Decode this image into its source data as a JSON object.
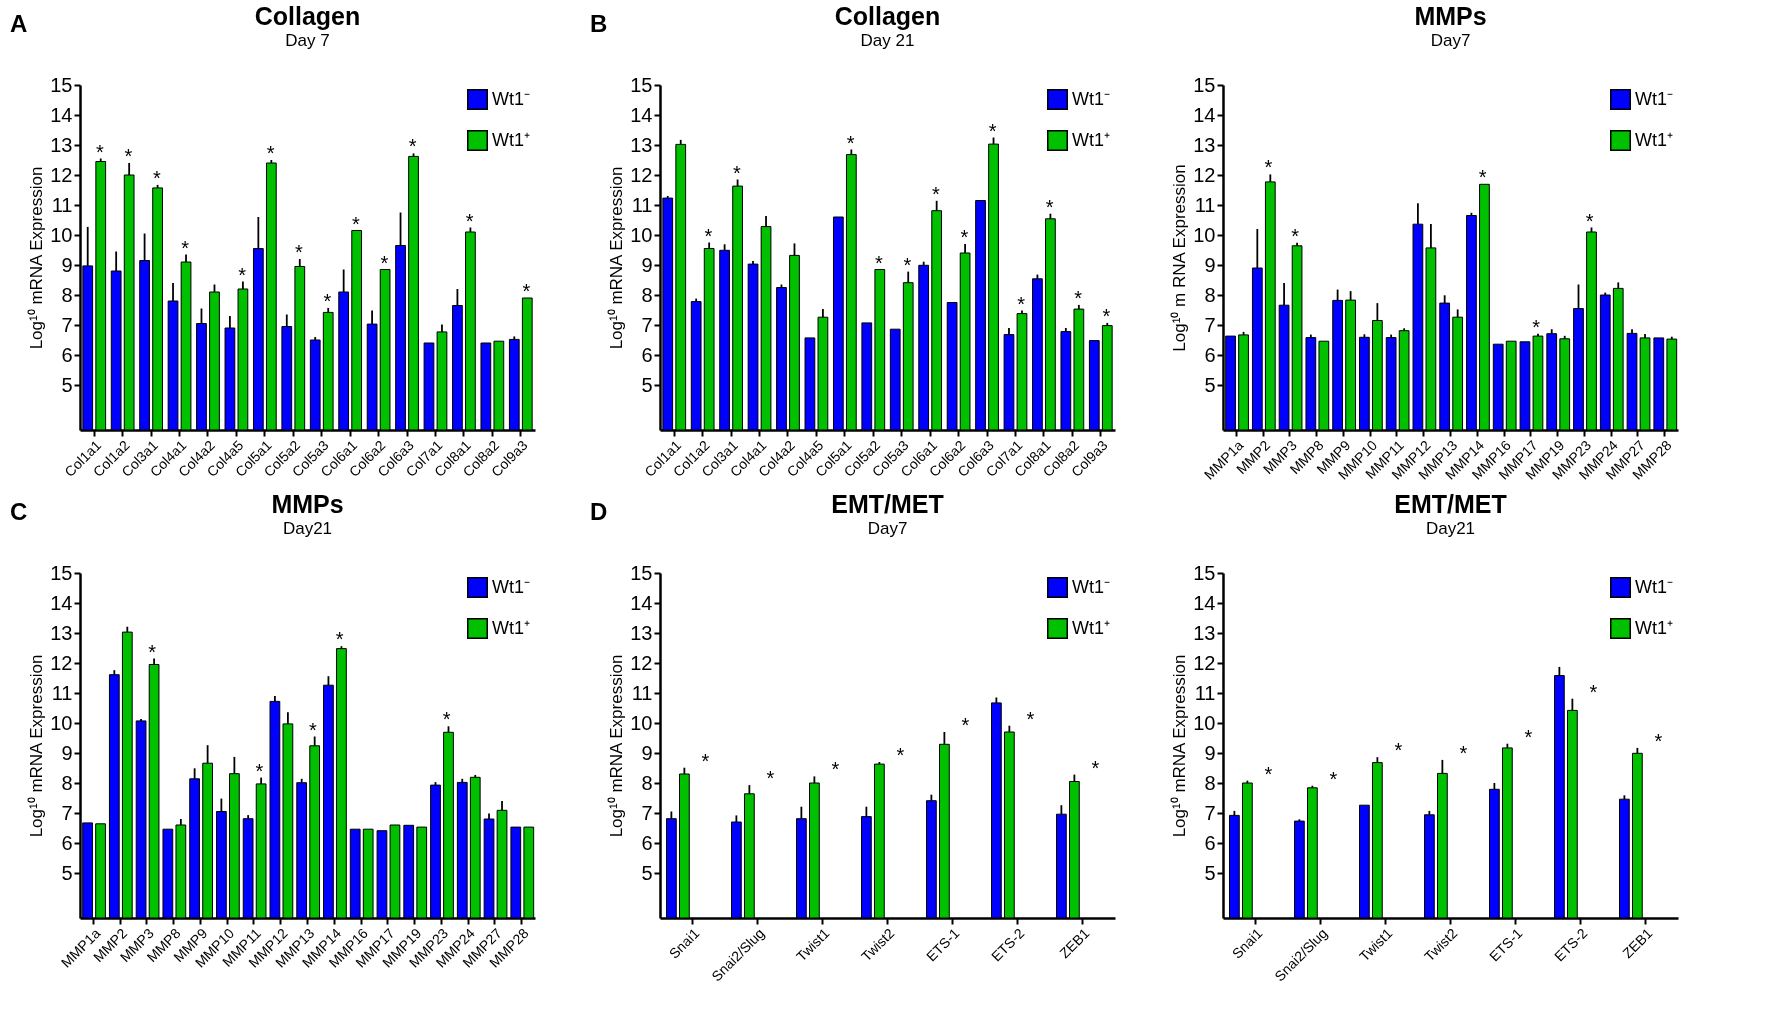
{
  "chart_data": [
    {
      "type": "bar",
      "title": "Collagen",
      "subtitle": "Day 7",
      "ylabel": "Log¹⁰ mRNA Expression",
      "legend": "top right",
      "ylim": [
        3.5,
        15
      ],
      "yticks": [
        5,
        6,
        7,
        8,
        9,
        10,
        11,
        12,
        13,
        14,
        15
      ],
      "categories": [
        "Col1a1",
        "Col1a2",
        "Col3a1",
        "Col4a1",
        "Col4a2",
        "Col4a5",
        "Col5a1",
        "Col5a2",
        "Col5a3",
        "Col6a1",
        "Col6a2",
        "Col6a3",
        "Col7a1",
        "Col8a1",
        "Col8a2",
        "Col9a3"
      ],
      "series": [
        {
          "name": "Wt1⁻",
          "color": "#0000ff",
          "values": [
            8.97,
            8.8,
            9.15,
            7.8,
            7.05,
            6.9,
            9.55,
            6.95,
            6.5,
            8.1,
            7.03,
            9.65,
            6.4,
            7.65,
            6.4,
            6.52
          ],
          "errors": [
            1.3,
            0.65,
            0.9,
            0.6,
            0.5,
            0.4,
            1.05,
            0.4,
            0.1,
            0.75,
            0.45,
            1.1,
            null,
            0.55,
            null,
            0.1
          ]
        },
        {
          "name": "Wt1⁺",
          "color": "#00c000",
          "values": [
            12.45,
            12.0,
            11.57,
            9.1,
            8.1,
            8.2,
            12.4,
            8.95,
            7.42,
            10.15,
            8.85,
            12.62,
            6.77,
            10.1,
            6.46,
            7.9
          ],
          "errors": [
            0.1,
            0.4,
            0.1,
            0.25,
            0.25,
            0.25,
            0.1,
            0.25,
            0.15,
            null,
            null,
            0.1,
            0.25,
            0.15,
            null,
            null
          ]
        }
      ],
      "annotations": [
        "A",
        {
          "text": "*",
          "x": "Col1a1",
          "y": 12.45
        },
        {
          "text": "*",
          "x": "Col1a2",
          "y": 12.0
        },
        {
          "text": "*",
          "x": "Col3a1",
          "y": 11.57
        },
        {
          "text": "*",
          "x": "Col4a1",
          "y": 9.1
        },
        {
          "text": "*",
          "x": "Col4a5",
          "y": 8.2
        },
        {
          "text": "*",
          "x": "Col5a1",
          "y": 12.4
        },
        {
          "text": "*",
          "x": "Col5a2",
          "y": 8.95
        },
        {
          "text": "*",
          "x": "Col5a3",
          "y": 7.42
        },
        {
          "text": "*",
          "x": "Col6a1",
          "y": 10.15
        },
        {
          "text": "*",
          "x": "Col6a2",
          "y": 8.85
        },
        {
          "text": "*",
          "x": "Col6a3",
          "y": 12.62
        },
        {
          "text": "*",
          "x": "Col8a1",
          "y": 10.1
        },
        {
          "text": "*",
          "x": "Col9a3",
          "y": 7.9
        }
      ]
    },
    {
      "type": "bar",
      "title": "Collagen",
      "subtitle": "Day 21",
      "ylabel": "Log¹⁰ mRNA Expression",
      "legend": "top right",
      "ylim": [
        3.5,
        15
      ],
      "yticks": [
        5,
        6,
        7,
        8,
        9,
        10,
        11,
        12,
        13,
        14,
        15
      ],
      "categories": [
        "Col1a1",
        "Col1a2",
        "Col3a1",
        "Col4a1",
        "Col4a2",
        "Col4a5",
        "Col5a1",
        "Col5a2",
        "Col5a3",
        "Col6a1",
        "Col6a2",
        "Col6a3",
        "Col7a1",
        "Col8a1",
        "Col8a2",
        "Col9a3"
      ],
      "series": [
        {
          "name": "Wt1⁻",
          "color": "#0000ff",
          "values": [
            11.23,
            7.78,
            9.49,
            9.03,
            8.25,
            6.57,
            10.6,
            7.07,
            6.86,
            8.99,
            7.75,
            11.15,
            6.68,
            8.54,
            6.78,
            6.48
          ],
          "errors": [
            0.07,
            0.1,
            0.2,
            0.1,
            0.1,
            null,
            null,
            null,
            null,
            0.12,
            null,
            null,
            0.22,
            0.14,
            0.12,
            null
          ]
        },
        {
          "name": "Wt1⁺",
          "color": "#00c000",
          "values": [
            13.02,
            9.55,
            11.63,
            10.28,
            9.32,
            7.26,
            12.68,
            8.85,
            8.41,
            10.81,
            9.4,
            13.03,
            7.38,
            10.54,
            7.53,
            6.98
          ],
          "errors": [
            0.15,
            0.2,
            0.22,
            0.35,
            0.4,
            0.27,
            0.17,
            null,
            0.37,
            0.33,
            0.3,
            0.22,
            0.1,
            0.17,
            0.14,
            0.09
          ]
        }
      ],
      "annotations": [
        "B",
        {
          "text": "*",
          "x": "Col1a2",
          "y": 9.55
        },
        {
          "text": "*",
          "x": "Col3a1",
          "y": 11.63
        },
        {
          "text": "*",
          "x": "Col5a1",
          "y": 12.68
        },
        {
          "text": "*",
          "x": "Col5a2",
          "y": 8.85
        },
        {
          "text": "*",
          "x": "Col5a3",
          "y": 8.41
        },
        {
          "text": "*",
          "x": "Col6a1",
          "y": 10.81
        },
        {
          "text": "*",
          "x": "Col6a2",
          "y": 9.4
        },
        {
          "text": "*",
          "x": "Col6a3",
          "y": 13.03
        },
        {
          "text": "*",
          "x": "Col7a1",
          "y": 7.38
        },
        {
          "text": "*",
          "x": "Col8a1",
          "y": 10.54
        },
        {
          "text": "*",
          "x": "Col8a2",
          "y": 7.53
        },
        {
          "text": "*",
          "x": "Col9a3",
          "y": 6.98
        }
      ]
    },
    {
      "type": "bar",
      "title": "MMPs",
      "subtitle": "Day7",
      "ylabel": "Log¹⁰ m RNA Expression",
      "legend": "top right",
      "ylim": [
        3.5,
        15
      ],
      "yticks": [
        5,
        6,
        7,
        8,
        9,
        10,
        11,
        12,
        13,
        14,
        15
      ],
      "categories": [
        "MMP1a",
        "MMP2",
        "MMP3",
        "MMP8",
        "MMP9",
        "MMP10",
        "MMP11",
        "MMP12",
        "MMP13",
        "MMP14",
        "MMP16",
        "MMP17",
        "MMP19",
        "MMP23",
        "MMP24",
        "MMP27",
        "MMP28"
      ],
      "series": [
        {
          "name": "Wt1⁻",
          "color": "#0000ff",
          "values": [
            6.63,
            8.9,
            7.66,
            6.58,
            7.82,
            6.59,
            6.58,
            10.36,
            7.73,
            10.65,
            6.36,
            6.44,
            6.71,
            7.55,
            8.0,
            6.72,
            6.57
          ],
          "errors": [
            null,
            1.3,
            0.74,
            0.1,
            0.36,
            0.1,
            0.1,
            0.7,
            0.26,
            0.09,
            null,
            null,
            0.15,
            0.8,
            0.08,
            0.14,
            null
          ]
        },
        {
          "name": "Wt1⁺",
          "color": "#00c000",
          "values": [
            6.67,
            11.77,
            9.64,
            6.46,
            7.83,
            7.15,
            6.81,
            9.57,
            7.26,
            11.69,
            6.46,
            6.63,
            6.54,
            10.1,
            8.22,
            6.57,
            6.53
          ],
          "errors": [
            0.1,
            0.25,
            0.1,
            null,
            0.3,
            0.58,
            0.08,
            0.8,
            0.26,
            null,
            null,
            0.08,
            0.1,
            0.15,
            0.2,
            0.13,
            0.08
          ]
        }
      ],
      "annotations": [
        {
          "text": "*",
          "x": "MMP2",
          "y": 11.77
        },
        {
          "text": "*",
          "x": "MMP3",
          "y": 9.64
        },
        {
          "text": "*",
          "x": "MMP14",
          "y": 11.69
        },
        {
          "text": "*",
          "x": "MMP17",
          "y": 6.63
        },
        {
          "text": "*",
          "x": "MMP23",
          "y": 10.1
        }
      ]
    },
    {
      "type": "bar",
      "title": "MMPs",
      "subtitle": "Day21",
      "ylabel": "Log¹⁰ mRNA Expression",
      "legend": "top right",
      "ylim": [
        3.5,
        15
      ],
      "yticks": [
        5,
        6,
        7,
        8,
        9,
        10,
        11,
        12,
        13,
        14,
        15
      ],
      "categories": [
        "MMP1a",
        "MMP2",
        "MMP3",
        "MMP8",
        "MMP9",
        "MMP10",
        "MMP11",
        "MMP12",
        "MMP13",
        "MMP14",
        "MMP16",
        "MMP17",
        "MMP19",
        "MMP23",
        "MMP24",
        "MMP27",
        "MMP28"
      ],
      "series": [
        {
          "name": "Wt1⁻",
          "color": "#0000ff",
          "values": [
            6.67,
            11.61,
            10.07,
            6.46,
            8.14,
            7.05,
            6.81,
            10.72,
            8.01,
            11.26,
            6.46,
            6.41,
            6.59,
            7.93,
            8.02,
            6.8,
            6.53
          ],
          "errors": [
            null,
            0.15,
            0.06,
            null,
            0.35,
            0.43,
            0.12,
            0.18,
            0.13,
            0.3,
            null,
            null,
            null,
            0.1,
            0.12,
            0.18,
            null
          ]
        },
        {
          "name": "Wt1⁺",
          "color": "#00c000",
          "values": [
            6.64,
            13.03,
            11.95,
            6.6,
            8.66,
            8.31,
            7.97,
            9.97,
            9.24,
            12.48,
            6.46,
            6.6,
            6.53,
            9.69,
            8.19,
            7.09,
            6.53
          ],
          "errors": [
            null,
            0.18,
            0.2,
            0.2,
            0.6,
            0.56,
            0.21,
            0.39,
            0.31,
            0.08,
            null,
            null,
            null,
            0.2,
            0.08,
            0.31,
            null
          ]
        }
      ],
      "annotations": [
        "C",
        {
          "text": "*",
          "x": "MMP3",
          "y": 11.95
        },
        {
          "text": "*",
          "x": "MMP11",
          "y": 7.97
        },
        {
          "text": "*",
          "x": "MMP13",
          "y": 9.24
        },
        {
          "text": "*",
          "x": "MMP14",
          "y": 12.48
        },
        {
          "text": "*",
          "x": "MMP23",
          "y": 9.69
        }
      ]
    },
    {
      "type": "bar",
      "title": "EMT/MET",
      "subtitle": "Day7",
      "ylabel": "Log¹⁰ mRNA Expression",
      "legend": "top right",
      "ylim": [
        3.5,
        15
      ],
      "yticks": [
        5,
        6,
        7,
        8,
        9,
        10,
        11,
        12,
        13,
        14,
        15
      ],
      "categories": [
        "Snai1",
        "Snai2/Slug",
        "Twist1",
        "Twist2",
        "ETS-1",
        "ETS-2",
        "ZEB1"
      ],
      "series": [
        {
          "name": "Wt1⁻",
          "color": "#0000ff",
          "values": [
            6.81,
            6.7,
            6.81,
            6.88,
            7.41,
            10.67,
            6.96
          ],
          "errors": [
            0.24,
            0.22,
            0.4,
            0.33,
            0.2,
            0.18,
            0.3
          ]
        },
        {
          "name": "Wt1⁺",
          "color": "#00c000",
          "values": [
            8.3,
            7.64,
            8.0,
            8.63,
            9.29,
            9.7,
            8.05
          ],
          "errors": [
            0.21,
            0.29,
            0.22,
            0.07,
            0.41,
            0.21,
            0.23
          ]
        }
      ],
      "annotations": [
        "D",
        {
          "text": "*",
          "x": "Snai1",
          "y": 8.3
        },
        {
          "text": "*",
          "x": "Snai2/Slug",
          "y": 7.64
        },
        {
          "text": "*",
          "x": "Twist1",
          "y": 8.0
        },
        {
          "text": "*",
          "x": "Twist2",
          "y": 8.63
        },
        {
          "text": "*",
          "x": "ETS-1",
          "y": 9.29
        },
        {
          "text": "*",
          "x": "ETS-2",
          "y": 9.7
        },
        {
          "text": "*",
          "x": "ZEB1",
          "y": 8.05
        }
      ]
    },
    {
      "type": "bar",
      "title": "EMT/MET",
      "subtitle": "Day21",
      "ylabel": "Log¹⁰ mRNA Expression",
      "legend": "top right",
      "ylim": [
        3.5,
        15
      ],
      "yticks": [
        5,
        6,
        7,
        8,
        9,
        10,
        11,
        12,
        13,
        14,
        15
      ],
      "categories": [
        "Snai1",
        "Snai2/Slug",
        "Twist1",
        "Twist2",
        "ETS-1",
        "ETS-2",
        "ZEB1"
      ],
      "series": [
        {
          "name": "Wt1⁻",
          "color": "#0000ff",
          "values": [
            6.92,
            6.73,
            7.26,
            6.94,
            7.79,
            11.58,
            7.46
          ],
          "errors": [
            0.15,
            0.06,
            null,
            0.13,
            0.21,
            0.29,
            0.13
          ]
        },
        {
          "name": "Wt1⁺",
          "color": "#00c000",
          "values": [
            8.0,
            7.84,
            8.68,
            8.32,
            9.17,
            10.42,
            8.99
          ],
          "errors": [
            0.08,
            0.07,
            0.18,
            0.45,
            0.14,
            0.39,
            0.18
          ]
        }
      ],
      "annotations": [
        {
          "text": "*",
          "x": "Snai1",
          "y": 8.0
        },
        {
          "text": "*",
          "x": "Snai2/Slug",
          "y": 7.84
        },
        {
          "text": "*",
          "x": "Twist1",
          "y": 8.68
        },
        {
          "text": "*",
          "x": "Twist2",
          "y": 8.32
        },
        {
          "text": "*",
          "x": "ETS-1",
          "y": 9.17
        },
        {
          "text": "*",
          "x": "ETS-2",
          "y": 10.42
        },
        {
          "text": "*",
          "x": "ZEB1",
          "y": 8.99
        }
      ]
    }
  ]
}
